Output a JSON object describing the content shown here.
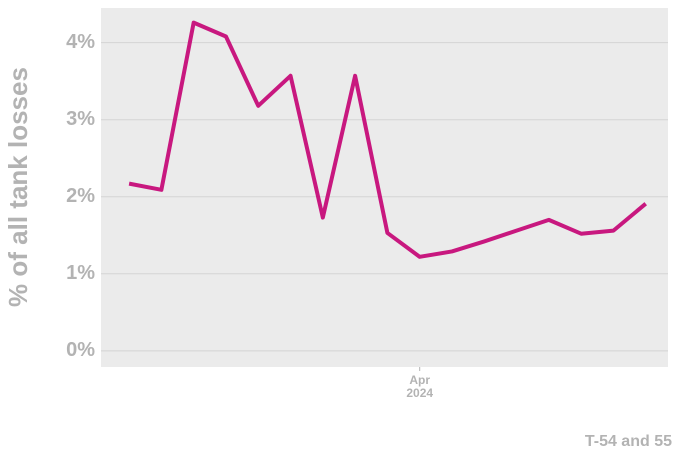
{
  "chart_data": {
    "type": "line",
    "y_label": "% of all tank losses",
    "caption": "T-54 and 55",
    "x": [
      0,
      1,
      2,
      3,
      4,
      5,
      6,
      7,
      8,
      9,
      10,
      11,
      12,
      13,
      14,
      15,
      16
    ],
    "series": [
      {
        "color": "#c8187f",
        "values": [
          2.17,
          2.09,
          4.26,
          4.08,
          3.18,
          3.57,
          1.73,
          3.57,
          1.53,
          1.22,
          1.29,
          1.42,
          1.56,
          1.7,
          1.52,
          1.56,
          1.91
        ]
      }
    ],
    "xlim": [
      -0.87,
      16.69
    ],
    "xticks": [
      {
        "value": 9,
        "label": "Apr",
        "year": "2024"
      }
    ],
    "ylim": [
      -0.21,
      4.45
    ],
    "yticks": [
      {
        "value": 0,
        "label": "0%"
      },
      {
        "value": 1,
        "label": "1%"
      },
      {
        "value": 2,
        "label": "2%"
      },
      {
        "value": 3,
        "label": "3%"
      },
      {
        "value": 4,
        "label": "4%"
      }
    ],
    "grid": true
  }
}
